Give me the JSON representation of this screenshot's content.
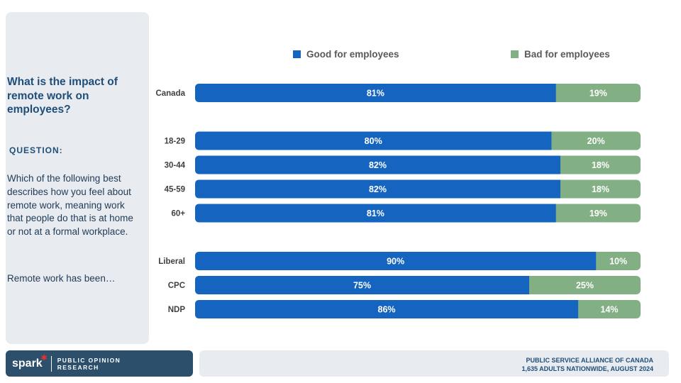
{
  "panel": {
    "title": "What is the impact of remote work on employees?",
    "question_label": "QUESTION:",
    "question_text": "Which of the following best describes how you feel about remote work, meaning work that people do that is at home or not at a formal workplace.",
    "stem": "Remote work has been…"
  },
  "legend": {
    "good": "Good for employees",
    "bad": "Bad for employees"
  },
  "colors": {
    "good": "#1565c0",
    "bad": "#82b084",
    "panel_bg": "#e8ebef",
    "brand": "#2c4f6c"
  },
  "chart_data": {
    "type": "bar",
    "orientation": "horizontal",
    "stacked": true,
    "percent_stacked": true,
    "categories": [
      "Canada",
      "18-29",
      "30-44",
      "45-59",
      "60+",
      "Liberal",
      "CPC",
      "NDP"
    ],
    "groups": [
      [
        "Canada"
      ],
      [
        "18-29",
        "30-44",
        "45-59",
        "60+"
      ],
      [
        "Liberal",
        "CPC",
        "NDP"
      ]
    ],
    "series": [
      {
        "name": "Good for employees",
        "values": [
          81,
          80,
          82,
          82,
          81,
          90,
          75,
          86
        ],
        "labels": [
          "81%",
          "80%",
          "82%",
          "82%",
          "81%",
          "90%",
          "75%",
          "86%"
        ]
      },
      {
        "name": "Bad for employees",
        "values": [
          19,
          20,
          18,
          18,
          19,
          10,
          25,
          14
        ],
        "labels": [
          "19%",
          "20%",
          "18%",
          "18%",
          "19%",
          "10%",
          "25%",
          "14%"
        ]
      }
    ],
    "xlim": [
      0,
      100
    ],
    "legend_position": "top"
  },
  "footer": {
    "logo_word": "spark",
    "logo_line1": "PUBLIC OPINION",
    "logo_line2": "RESEARCH",
    "source_line1": "PUBLIC SERVICE ALLIANCE OF CANADA",
    "source_line2": "1,635 ADULTS NATIONWIDE, AUGUST 2024"
  }
}
